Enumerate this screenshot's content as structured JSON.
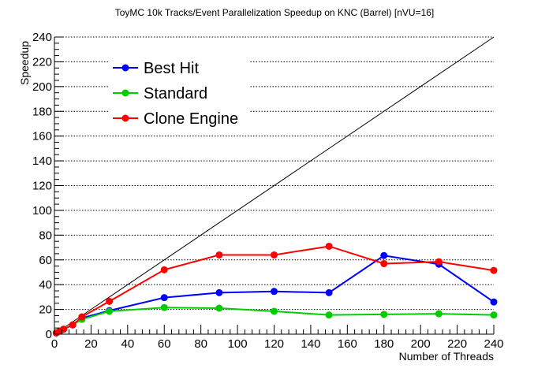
{
  "chart_data": {
    "type": "line",
    "title": "ToyMC 10k Tracks/Event Parallelization Speedup on KNC (Barrel) [nVU=16]",
    "xlabel": "Number of Threads",
    "ylabel": "Speedup",
    "xlim": [
      0,
      240
    ],
    "ylim": [
      0,
      240
    ],
    "xticks": [
      0,
      20,
      40,
      60,
      80,
      100,
      120,
      140,
      160,
      180,
      200,
      220,
      240
    ],
    "yticks": [
      0,
      20,
      40,
      60,
      80,
      100,
      120,
      140,
      160,
      180,
      200,
      220,
      240
    ],
    "grid": "horizontal dotted",
    "legend_position": "top-left",
    "reference_line": {
      "x": [
        0,
        240
      ],
      "y": [
        0,
        240
      ],
      "color": "#000000"
    },
    "series": [
      {
        "name": "Best Hit",
        "color": "#0000ff",
        "x": [
          1,
          3,
          5,
          10,
          15,
          30,
          60,
          90,
          120,
          150,
          180,
          210,
          240
        ],
        "y": [
          1,
          2.5,
          4,
          7.5,
          13,
          19,
          29.5,
          33.5,
          34.5,
          33.5,
          63.5,
          56.5,
          26
        ]
      },
      {
        "name": "Standard",
        "color": "#00cc00",
        "x": [
          1,
          3,
          5,
          10,
          15,
          30,
          60,
          90,
          120,
          150,
          180,
          210,
          240
        ],
        "y": [
          1,
          2.5,
          4,
          7.5,
          12,
          18.5,
          21.5,
          21,
          18.5,
          15.5,
          16,
          16.5,
          15.5
        ]
      },
      {
        "name": "Clone Engine",
        "color": "#ff0000",
        "x": [
          1,
          3,
          5,
          10,
          15,
          30,
          60,
          90,
          120,
          150,
          180,
          210,
          240
        ],
        "y": [
          1,
          2.5,
          4,
          7.5,
          14,
          26.5,
          52,
          64,
          64,
          71,
          57,
          58.5,
          51.5
        ]
      }
    ]
  }
}
